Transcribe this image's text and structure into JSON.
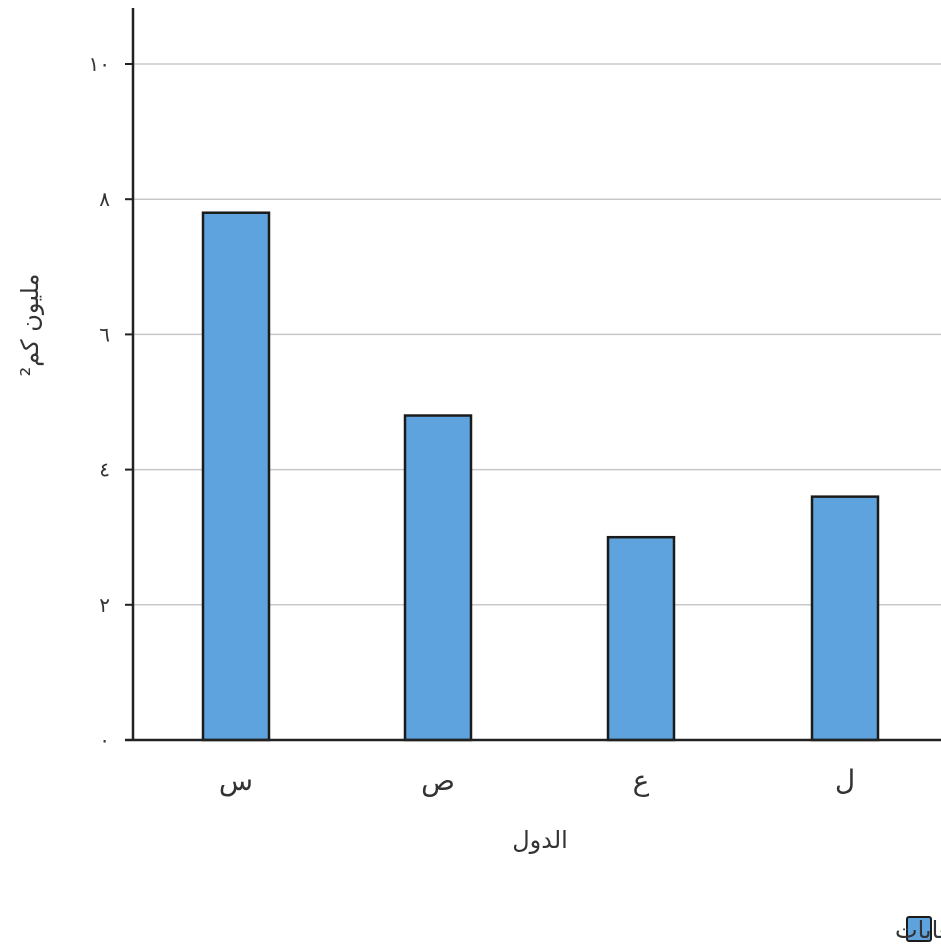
{
  "chart_data": {
    "type": "bar",
    "categories": [
      "س",
      "ص",
      "ع",
      "ل"
    ],
    "series": [
      {
        "name": "المساحة المغطاة بالغابات",
        "values": [
          7.8,
          4.8,
          3.0,
          3.6
        ]
      }
    ],
    "xlabel": "الدول",
    "ylabel": "مليون كم²",
    "ylim": [
      0,
      10
    ],
    "yticks": [
      0,
      2,
      4,
      6,
      8,
      10
    ],
    "ytick_labels": [
      "٠",
      "٢",
      "٤",
      "٦",
      "٨",
      "١٠"
    ],
    "grid": true,
    "legend_position": "bottom-right",
    "colors": {
      "bar_fill": "#5ea3de",
      "bar_stroke": "#1b1b1b",
      "grid": "#c8c8c8",
      "axis": "#222222"
    }
  }
}
